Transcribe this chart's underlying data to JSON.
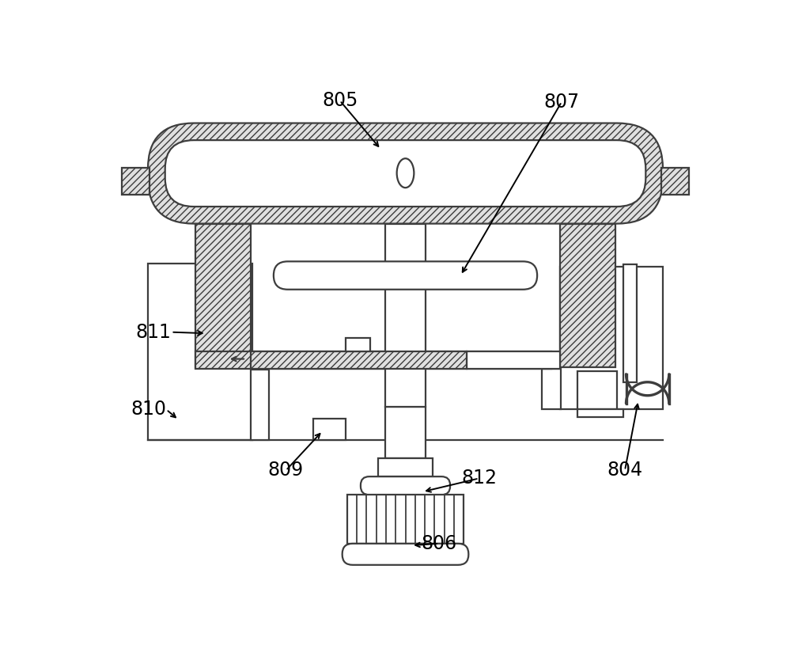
{
  "bg_color": "#ffffff",
  "line_color": "#3d3d3d",
  "lw": 1.6,
  "figsize": [
    10.0,
    8.15
  ],
  "dpi": 100,
  "hatch": "////",
  "hatch_fc": "#e0e0e0"
}
